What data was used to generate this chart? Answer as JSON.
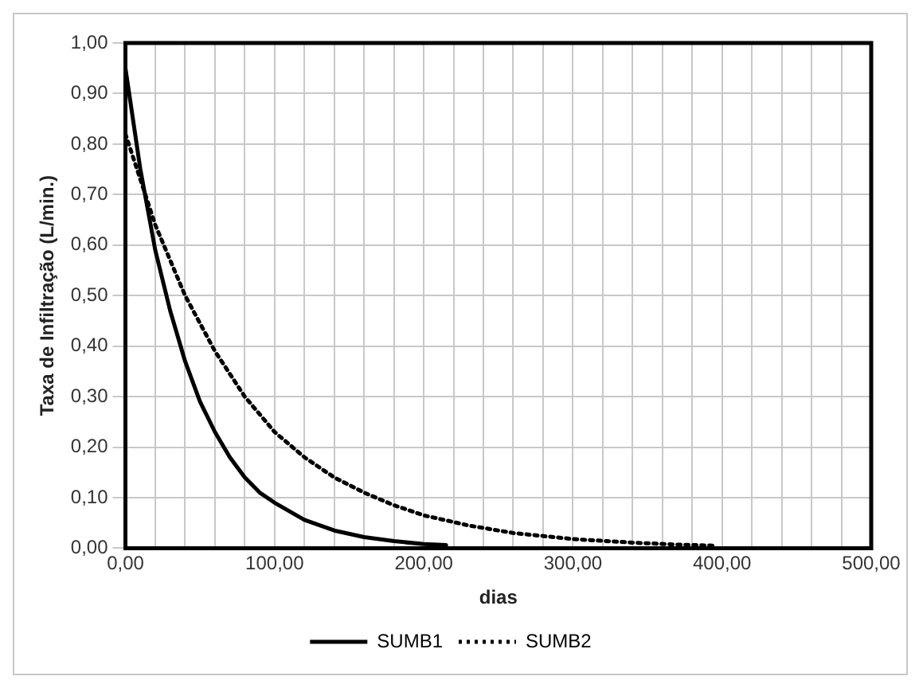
{
  "chart_data": {
    "type": "line",
    "xlabel": "dias",
    "ylabel": "Taxa de Infiltração (L/min.)",
    "xlim": [
      0,
      500
    ],
    "ylim": [
      0,
      1
    ],
    "xticks": [
      {
        "value": 0,
        "label": "0,00"
      },
      {
        "value": 20,
        "label": null
      },
      {
        "value": 40,
        "label": null
      },
      {
        "value": 60,
        "label": null
      },
      {
        "value": 80,
        "label": null
      },
      {
        "value": 100,
        "label": "100,00"
      },
      {
        "value": 120,
        "label": null
      },
      {
        "value": 140,
        "label": null
      },
      {
        "value": 160,
        "label": null
      },
      {
        "value": 180,
        "label": null
      },
      {
        "value": 200,
        "label": "200,00"
      },
      {
        "value": 220,
        "label": null
      },
      {
        "value": 240,
        "label": null
      },
      {
        "value": 260,
        "label": null
      },
      {
        "value": 280,
        "label": null
      },
      {
        "value": 300,
        "label": "300,00"
      },
      {
        "value": 320,
        "label": null
      },
      {
        "value": 340,
        "label": null
      },
      {
        "value": 360,
        "label": null
      },
      {
        "value": 380,
        "label": null
      },
      {
        "value": 400,
        "label": "400,00"
      },
      {
        "value": 420,
        "label": null
      },
      {
        "value": 440,
        "label": null
      },
      {
        "value": 460,
        "label": null
      },
      {
        "value": 480,
        "label": null
      },
      {
        "value": 500,
        "label": "500,00"
      }
    ],
    "yticks": [
      {
        "value": 0,
        "label": "0,00"
      },
      {
        "value": 0.1,
        "label": "0,10"
      },
      {
        "value": 0.2,
        "label": "0,20"
      },
      {
        "value": 0.3,
        "label": "0,30"
      },
      {
        "value": 0.4,
        "label": "0,40"
      },
      {
        "value": 0.5,
        "label": "0,50"
      },
      {
        "value": 0.6,
        "label": "0,60"
      },
      {
        "value": 0.7,
        "label": "0,70"
      },
      {
        "value": 0.8,
        "label": "0,80"
      },
      {
        "value": 0.9,
        "label": "0,90"
      },
      {
        "value": 1,
        "label": "1,00"
      }
    ],
    "grid": true,
    "legend": "bottom",
    "marker": "none",
    "series": [
      {
        "name": "SUMB1",
        "color": "#000000",
        "line_style": "solid",
        "x": [
          0,
          10,
          20,
          30,
          40,
          50,
          60,
          70,
          80,
          90,
          100,
          120,
          140,
          160,
          180,
          200,
          215
        ],
        "values": [
          0.95,
          0.75,
          0.59,
          0.47,
          0.37,
          0.29,
          0.23,
          0.18,
          0.14,
          0.11,
          0.09,
          0.056,
          0.035,
          0.022,
          0.014,
          0.008,
          0.006
        ]
      },
      {
        "name": "SUMB2",
        "color": "#000000",
        "line_style": "dotted",
        "x": [
          0,
          20,
          40,
          60,
          80,
          100,
          120,
          140,
          160,
          180,
          200,
          230,
          260,
          300,
          340,
          370,
          395
        ],
        "values": [
          0.82,
          0.64,
          0.5,
          0.39,
          0.3,
          0.23,
          0.18,
          0.14,
          0.11,
          0.085,
          0.065,
          0.045,
          0.03,
          0.018,
          0.011,
          0.007,
          0.005
        ]
      }
    ]
  }
}
